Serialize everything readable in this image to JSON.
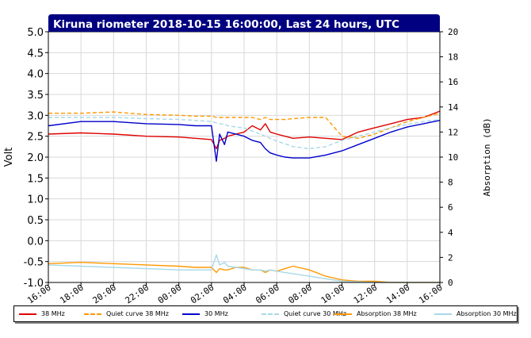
{
  "chart_data": {
    "type": "line",
    "title": "Kiruna riometer 2018-10-15 16:00:00, Last 24 hours, UTC",
    "ylabel": "Volt",
    "y2label": "Absorption (dB)",
    "xlabel": "",
    "ylim": [
      -1.0,
      5.0
    ],
    "y2lim": [
      0,
      20
    ],
    "yticks": [
      "5.0",
      "4.5",
      "4.0",
      "3.5",
      "3.0",
      "2.5",
      "2.0",
      "1.5",
      "1.0",
      "0.5",
      "0.0",
      "-0.5",
      "-1.0"
    ],
    "y2ticks": [
      "20",
      "18",
      "16",
      "14",
      "12",
      "10",
      "8",
      "6",
      "4",
      "2",
      "0"
    ],
    "xticks": [
      "16:00",
      "18:00",
      "20:00",
      "22:00",
      "00:00",
      "02:00",
      "04:00",
      "06:00",
      "08:00",
      "10:00",
      "12:00",
      "14:00",
      "16:00"
    ],
    "grid": true,
    "legend_position": "bottom",
    "x_hours": [
      0,
      2,
      4,
      6,
      8,
      9,
      10,
      10.3,
      10.5,
      10.8,
      11,
      11.5,
      12,
      12.5,
      13,
      13.3,
      13.6,
      14,
      14.5,
      15,
      16,
      17,
      18,
      19,
      20,
      21,
      22,
      23,
      24
    ],
    "series": [
      {
        "name": "38 MHz",
        "axis": "left",
        "color": "#e00000",
        "style": "solid",
        "values": [
          2.55,
          2.58,
          2.55,
          2.5,
          2.48,
          2.45,
          2.42,
          2.2,
          2.4,
          2.45,
          2.5,
          2.55,
          2.6,
          2.75,
          2.65,
          2.8,
          2.6,
          2.55,
          2.5,
          2.45,
          2.48,
          2.45,
          2.42,
          2.6,
          2.7,
          2.8,
          2.9,
          2.95,
          3.1
        ]
      },
      {
        "name": "Quiet curve 38 MHz",
        "axis": "left",
        "color": "#ff9900",
        "style": "dashed",
        "values": [
          3.05,
          3.05,
          3.08,
          3.02,
          3.0,
          2.98,
          2.98,
          2.95,
          2.95,
          2.95,
          2.95,
          2.95,
          2.95,
          2.95,
          2.9,
          2.95,
          2.9,
          2.9,
          2.9,
          2.92,
          2.95,
          2.95,
          2.5,
          2.45,
          2.55,
          2.7,
          2.85,
          2.95,
          3.05
        ]
      },
      {
        "name": "30 MHz",
        "axis": "left",
        "color": "#0000cc",
        "style": "solid",
        "values": [
          2.75,
          2.85,
          2.85,
          2.8,
          2.78,
          2.75,
          2.75,
          1.9,
          2.55,
          2.3,
          2.6,
          2.55,
          2.5,
          2.4,
          2.35,
          2.2,
          2.1,
          2.05,
          2.0,
          1.98,
          1.98,
          2.05,
          2.15,
          2.3,
          2.45,
          2.6,
          2.72,
          2.8,
          2.88
        ]
      },
      {
        "name": "Quiet curve 30 MHz",
        "axis": "left",
        "color": "#a8d8e8",
        "style": "dashed",
        "values": [
          2.95,
          2.95,
          2.95,
          2.92,
          2.9,
          2.88,
          2.85,
          2.82,
          2.8,
          2.78,
          2.75,
          2.72,
          2.7,
          2.62,
          2.55,
          2.5,
          2.45,
          2.38,
          2.32,
          2.25,
          2.2,
          2.25,
          2.4,
          2.5,
          2.6,
          2.7,
          2.78,
          2.85,
          2.9
        ]
      },
      {
        "name": "Absorption 38 MHz",
        "axis": "right",
        "color": "#ff9900",
        "style": "solid",
        "values": [
          1.5,
          1.6,
          1.5,
          1.4,
          1.3,
          1.2,
          1.2,
          0.8,
          1.1,
          1.0,
          1.0,
          1.2,
          1.2,
          1.0,
          1.0,
          0.8,
          1.0,
          0.9,
          1.1,
          1.3,
          1.0,
          0.5,
          0.2,
          0.1,
          0.1,
          0.0,
          0.0,
          0.0,
          0.0
        ]
      },
      {
        "name": "Absorption 30 MHz",
        "axis": "right",
        "color": "#a8d8e8",
        "style": "solid",
        "values": [
          1.4,
          1.3,
          1.2,
          1.1,
          1.0,
          1.0,
          1.0,
          2.2,
          1.4,
          1.6,
          1.3,
          1.2,
          1.1,
          1.0,
          1.0,
          0.9,
          1.0,
          0.9,
          0.8,
          0.7,
          0.5,
          0.3,
          0.1,
          0.05,
          0.0,
          0.0,
          0.0,
          0.0,
          0.0
        ]
      }
    ]
  }
}
